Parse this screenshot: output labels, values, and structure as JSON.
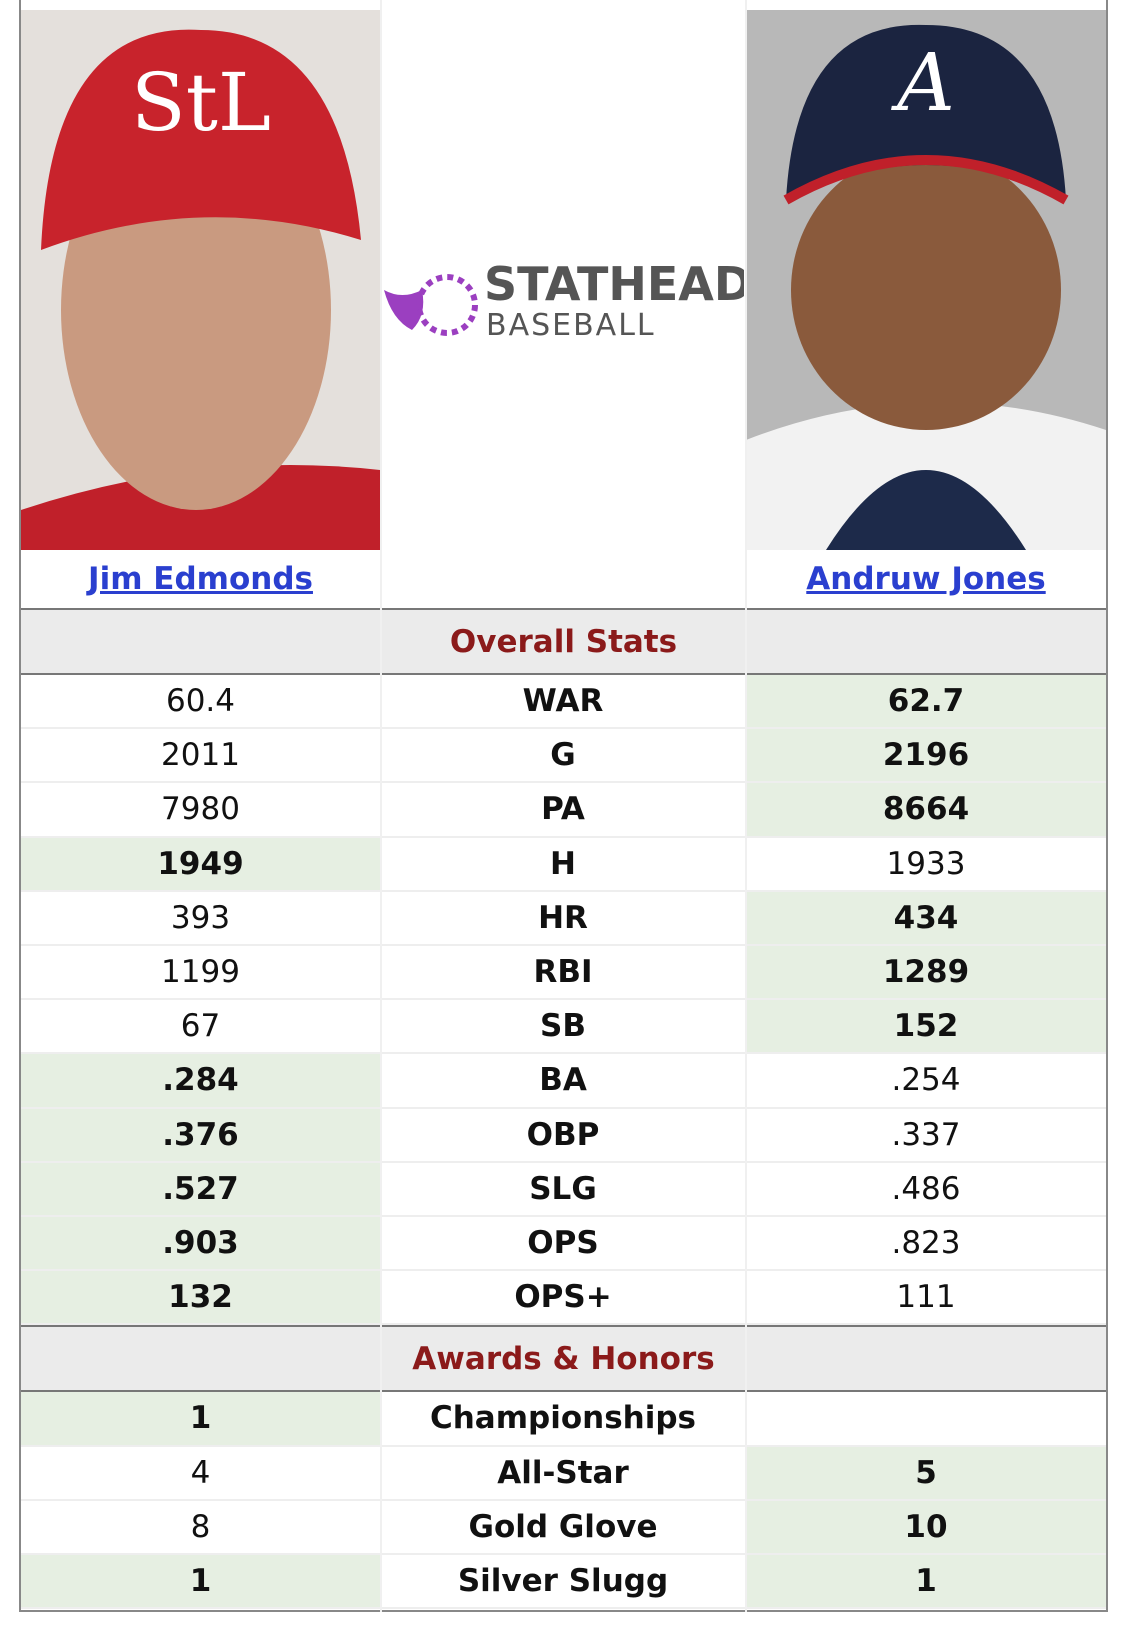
{
  "players": {
    "left": "Jim Edmonds",
    "right": "Andruw Jones"
  },
  "logo": {
    "name": "STATHEAD",
    "sub": "BASEBALL"
  },
  "sections": [
    {
      "title": "Overall Stats",
      "rows": [
        {
          "stat": "WAR",
          "left": "60.4",
          "right": "62.7",
          "leader": "right"
        },
        {
          "stat": "G",
          "left": "2011",
          "right": "2196",
          "leader": "right"
        },
        {
          "stat": "PA",
          "left": "7980",
          "right": "8664",
          "leader": "right"
        },
        {
          "stat": "H",
          "left": "1949",
          "right": "1933",
          "leader": "left"
        },
        {
          "stat": "HR",
          "left": "393",
          "right": "434",
          "leader": "right"
        },
        {
          "stat": "RBI",
          "left": "1199",
          "right": "1289",
          "leader": "right"
        },
        {
          "stat": "SB",
          "left": "67",
          "right": "152",
          "leader": "right"
        },
        {
          "stat": "BA",
          "left": ".284",
          "right": ".254",
          "leader": "left"
        },
        {
          "stat": "OBP",
          "left": ".376",
          "right": ".337",
          "leader": "left"
        },
        {
          "stat": "SLG",
          "left": ".527",
          "right": ".486",
          "leader": "left"
        },
        {
          "stat": "OPS",
          "left": ".903",
          "right": ".823",
          "leader": "left"
        },
        {
          "stat": "OPS+",
          "left": "132",
          "right": "111",
          "leader": "left"
        }
      ]
    },
    {
      "title": "Awards & Honors",
      "rows": [
        {
          "stat": "Championships",
          "left": "1",
          "right": null,
          "leader": "left"
        },
        {
          "stat": "All-Star",
          "left": "4",
          "right": "5",
          "leader": "right"
        },
        {
          "stat": "Gold Glove",
          "left": "8",
          "right": "10",
          "leader": "right"
        },
        {
          "stat": "Silver Slugg",
          "left": "1",
          "right": "1",
          "leader": "both"
        }
      ]
    }
  ]
}
